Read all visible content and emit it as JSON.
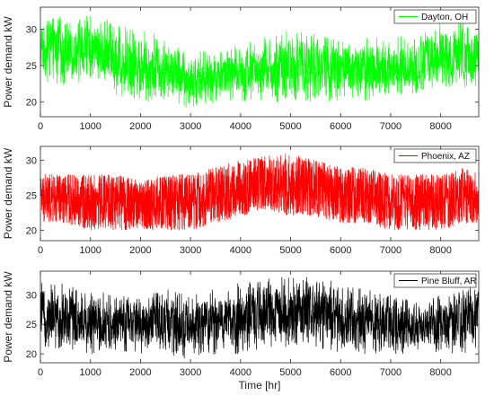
{
  "chart_data": [
    {
      "type": "line",
      "series": [
        {
          "name": "Dayton, OH",
          "color": "#00ff00",
          "envelope": {
            "x": [
              0,
              500,
              1000,
              1500,
              2000,
              2500,
              3000,
              3500,
              4000,
              4500,
              5000,
              5500,
              6000,
              6500,
              7000,
              7500,
              8000,
              8500,
              8760
            ],
            "low": [
              23,
              22,
              23,
              21,
              20,
              20,
              19,
              20,
              20,
              20,
              20,
              20,
              20,
              20,
              21,
              21,
              22,
              22,
              21
            ],
            "high": [
              32,
              32,
              32,
              31,
              30,
              29,
              27,
              27,
              28,
              29,
              30,
              30,
              29,
              29,
              29,
              29,
              31,
              32,
              32
            ]
          }
        }
      ],
      "xlim": [
        0,
        8760
      ],
      "xticks": [
        0,
        1000,
        2000,
        3000,
        4000,
        5000,
        6000,
        7000,
        8000
      ],
      "ylim": [
        18,
        33
      ],
      "yticks": [
        20,
        25,
        30
      ],
      "ylabel": "Power demand kW",
      "xlabel": "",
      "legend": "top-right"
    },
    {
      "type": "line",
      "series": [
        {
          "name": "Phoenix, AZ",
          "color": "#ff0000",
          "envelope": {
            "x": [
              0,
              500,
              1000,
              1500,
              2000,
              2500,
              3000,
              3500,
              4000,
              4500,
              5000,
              5500,
              6000,
              6500,
              7000,
              7500,
              8000,
              8500,
              8760
            ],
            "low": [
              21,
              21,
              20,
              20,
              20,
              20,
              20,
              21,
              22,
              23,
              22,
              22,
              21,
              21,
              20,
              20,
              20,
              21,
              21
            ],
            "high": [
              28,
              28,
              28,
              28,
              27,
              28,
              28,
              29,
              30,
              31,
              31,
              30,
              29,
              29,
              28,
              28,
              28,
              29,
              28
            ]
          }
        }
      ],
      "xlim": [
        0,
        8760
      ],
      "xticks": [
        0,
        1000,
        2000,
        3000,
        4000,
        5000,
        6000,
        7000,
        8000
      ],
      "ylim": [
        18.5,
        32
      ],
      "yticks": [
        20,
        25,
        30
      ],
      "ylabel": "Power demand kW",
      "xlabel": "",
      "legend": "top-right"
    },
    {
      "type": "line",
      "series": [
        {
          "name": "Pine Bluff, AR",
          "color": "#000000",
          "envelope": {
            "x": [
              0,
              500,
              1000,
              1500,
              2000,
              2500,
              3000,
              3500,
              4000,
              4500,
              5000,
              5500,
              6000,
              6500,
              7000,
              7500,
              8000,
              8500,
              8760
            ],
            "low": [
              21,
              20,
              20,
              20,
              20,
              20,
              19,
              20,
              20,
              21,
              21,
              21,
              20,
              20,
              20,
              20,
              20,
              20,
              21
            ],
            "high": [
              32,
              32,
              31,
              30,
              30,
              31,
              30,
              31,
              32,
              33,
              33,
              33,
              32,
              31,
              30,
              29,
              30,
              31,
              32
            ]
          }
        }
      ],
      "xlim": [
        0,
        8760
      ],
      "xticks": [
        0,
        1000,
        2000,
        3000,
        4000,
        5000,
        6000,
        7000,
        8000
      ],
      "ylim": [
        18.5,
        34
      ],
      "yticks": [
        20,
        25,
        30
      ],
      "ylabel": "Power demand kW",
      "xlabel": "Time [hr]",
      "legend": "top-right"
    }
  ]
}
